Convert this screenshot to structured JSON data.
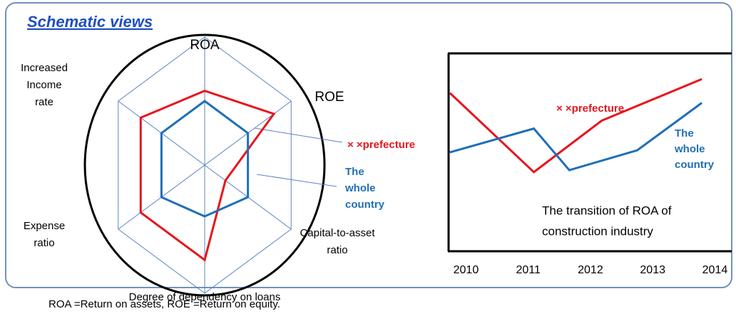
{
  "title": "Schematic views",
  "footnote": "ROA =Return on assets, ROE =Return on equity.",
  "chart_data": [
    {
      "type": "radar",
      "axes": [
        [
          "ROA"
        ],
        [
          "ROE"
        ],
        [
          "Capital-to-asset",
          "ratio"
        ],
        [
          "Degree of dependency on loans"
        ],
        [
          "Expense",
          "ratio"
        ],
        [
          "Increased",
          "Income",
          "rate"
        ]
      ],
      "rlim": [
        0,
        1
      ],
      "series": [
        {
          "name": [
            "× ×prefecture"
          ],
          "color": "#e8141c",
          "values": [
            0.58,
            0.8,
            0.24,
            0.74,
            0.74,
            0.74
          ]
        },
        {
          "name": [
            "The",
            "whole",
            "country"
          ],
          "color": "#1f6fb8",
          "values": [
            0.5,
            0.5,
            0.5,
            0.4,
            0.5,
            0.5
          ]
        }
      ]
    },
    {
      "type": "line",
      "annotation": [
        "The transition of ROA of",
        "construction industry"
      ],
      "xlim": [
        2009.72,
        2014.27
      ],
      "xticks": [
        2010,
        2011,
        2012,
        2013,
        2014
      ],
      "ylim": [
        0,
        10
      ],
      "series": [
        {
          "name": [
            "× ×prefecture"
          ],
          "color": "#e8141c",
          "x": [
            2009.74,
            2011.09,
            2012.18,
            2013.79
          ],
          "values": [
            8.0,
            4.0,
            6.6,
            8.7
          ]
        },
        {
          "name": [
            "The",
            "whole",
            "country"
          ],
          "color": "#1f6fb8",
          "x": [
            2009.74,
            2011.09,
            2011.66,
            2012.75,
            2013.79
          ],
          "values": [
            5.0,
            6.2,
            4.1,
            5.1,
            7.5
          ]
        }
      ]
    }
  ]
}
